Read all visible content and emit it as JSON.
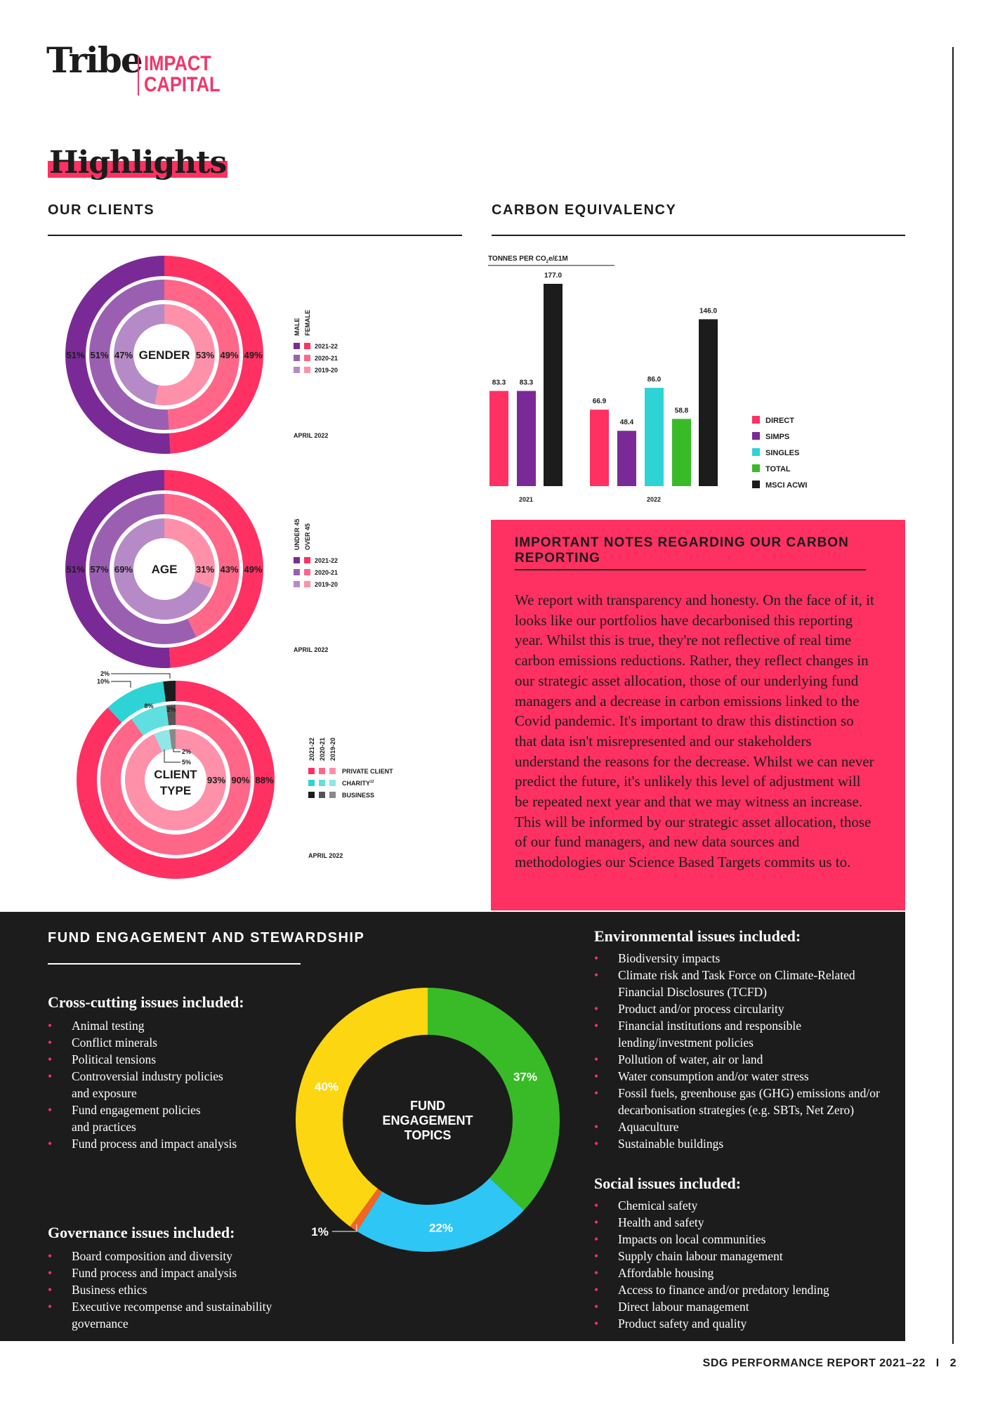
{
  "logo": {
    "tribe": "Tribe",
    "impact": "IMPACT",
    "capital": "CAPITAL"
  },
  "page_title": "Highlights",
  "sections": {
    "clients": "OUR CLIENTS",
    "carbon": "CARBON EQUIVALENCY",
    "fund": "FUND ENGAGEMENT AND STEWARDSHIP"
  },
  "notes": {
    "title": "IMPORTANT NOTES REGARDING OUR CARBON REPORTING",
    "body": "We report with transparency and honesty. On the face of it, it looks like our portfolios have decarbonised this reporting year. Whilst this is true, they're not reflective of real time carbon emissions reductions. Rather, they reflect changes in our strategic asset allocation, those of our underlying fund managers and a decrease in carbon emissions linked to the Covid pandemic. It's important to draw this distinction so that data isn't misrepresented and our stakeholders understand the reasons for the decrease. Whilst we can never predict the future, it's unlikely this level of adjustment will be repeated next year and that we may witness an increase. This will be informed by our strategic asset allocation, those of our fund managers, and new data sources and methodologies our Science Based Targets commits us to."
  },
  "lists": {
    "cross_heading": "Cross-cutting issues included:",
    "cross": [
      "Animal testing",
      "Conflict minerals",
      "Political tensions",
      "Controversial industry policies\nand exposure",
      "Fund engagement policies\nand practices",
      "Fund process and impact analysis"
    ],
    "gov_heading": "Governance issues included:",
    "gov": [
      "Board composition and diversity",
      "Fund process and impact analysis",
      "Business ethics",
      "Executive recompense and sustainability\ngovernance"
    ],
    "env_heading": "Environmental issues included:",
    "env": [
      "Biodiversity impacts",
      "Climate risk and Task Force on Climate-Related\nFinancial Disclosures (TCFD)",
      "Product and/or process circularity",
      "Financial institutions and responsible\nlending/investment policies",
      "Pollution of water, air or land",
      "Water consumption and/or water stress",
      "Fossil fuels, greenhouse gas (GHG) emissions and/or\ndecarbonisation strategies (e.g. SBTs, Net Zero)",
      "Aquaculture",
      "Sustainable buildings"
    ],
    "soc_heading": "Social issues included:",
    "soc": [
      "Chemical safety",
      "Health and safety",
      "Impacts on local communities",
      "Supply chain labour management",
      "Affordable housing",
      "Access to finance and/or predatory lending",
      "Direct labour management",
      "Product safety and quality"
    ]
  },
  "footer": {
    "report": "SDG PERFORMANCE REPORT 2021–22",
    "sep": "I",
    "page": "2"
  },
  "chart_data": [
    {
      "type": "pie",
      "variant": "nested-donut",
      "center_label": "GENDER",
      "date": "APRIL 2022",
      "legend_columns": [
        "MALE",
        "FEMALE"
      ],
      "rings": [
        {
          "name": "2021-22",
          "values": {
            "FEMALE": 49,
            "MALE": 51
          },
          "colors": [
            "#ff3162",
            "#7a2a96"
          ]
        },
        {
          "name": "2020-21",
          "values": {
            "FEMALE": 49,
            "MALE": 51
          },
          "colors": [
            "#ff6688",
            "#9b5fb2"
          ]
        },
        {
          "name": "2019-20",
          "values": {
            "FEMALE": 53,
            "MALE": 47
          },
          "colors": [
            "#ff90aa",
            "#b68ac6"
          ]
        }
      ]
    },
    {
      "type": "pie",
      "variant": "nested-donut",
      "center_label": "AGE",
      "date": "APRIL 2022",
      "legend_columns": [
        "UNDER 45",
        "OVER 45"
      ],
      "rings": [
        {
          "name": "2021-22",
          "values": {
            "OVER 45": 49,
            "UNDER 45": 51
          },
          "colors": [
            "#ff3162",
            "#7a2a96"
          ]
        },
        {
          "name": "2020-21",
          "values": {
            "OVER 45": 43,
            "UNDER 45": 57
          },
          "colors": [
            "#ff6688",
            "#9b5fb2"
          ]
        },
        {
          "name": "2019-20",
          "values": {
            "OVER 45": 31,
            "UNDER 45": 69
          },
          "colors": [
            "#ff90aa",
            "#b68ac6"
          ]
        }
      ]
    },
    {
      "type": "pie",
      "variant": "nested-donut",
      "center_label": "CLIENT TYPE",
      "date": "APRIL 2022",
      "legend_columns": [
        "2021-22",
        "2020-21",
        "2019-20"
      ],
      "legend_rows": [
        "PRIVATE CLIENT",
        "CHARITY",
        "BUSINESS"
      ],
      "charity_superscript": "12",
      "rings": [
        {
          "name": "2021-22",
          "values": {
            "PRIVATE CLIENT": 88,
            "CHARITY": 10,
            "BUSINESS": 2
          },
          "colors": [
            "#ff3162",
            "#2ed3d6",
            "#1c1c1c"
          ]
        },
        {
          "name": "2020-21",
          "values": {
            "PRIVATE CLIENT": 90,
            "CHARITY": 8,
            "BUSINESS": 2
          },
          "colors": [
            "#ff6688",
            "#5fdfe0",
            "#555555"
          ]
        },
        {
          "name": "2019-20",
          "values": {
            "PRIVATE CLIENT": 93,
            "CHARITY": 5,
            "BUSINESS": 2
          },
          "colors": [
            "#ff90aa",
            "#90e7e8",
            "#888888"
          ]
        }
      ]
    },
    {
      "type": "bar",
      "ylabel": "TONNES PER CO2e/£1M",
      "categories": [
        "2021",
        "2022"
      ],
      "series": [
        {
          "name": "DIRECT",
          "color": "#ff3162",
          "values": [
            83.3,
            66.9
          ]
        },
        {
          "name": "SIMPS",
          "color": "#7a2a96",
          "values": [
            83.3,
            48.4
          ]
        },
        {
          "name": "SINGLES",
          "color": "#2ed3d6",
          "values": [
            null,
            86.0
          ]
        },
        {
          "name": "TOTAL",
          "color": "#38bb27",
          "values": [
            null,
            58.8
          ]
        },
        {
          "name": "MSCI ACWI",
          "color": "#1c1c1c",
          "values": [
            177.0,
            146.0
          ]
        }
      ],
      "legend": "right",
      "grid": false
    },
    {
      "type": "pie",
      "variant": "donut",
      "center_label": "FUND ENGAGEMENT TOPICS",
      "slices": [
        {
          "value": 37,
          "label": "37%",
          "color": "#38bb27"
        },
        {
          "value": 22,
          "label": "22%",
          "color": "#2ec6f5"
        },
        {
          "value": 1,
          "label": "1%",
          "color": "#f26522"
        },
        {
          "value": 40,
          "label": "40%",
          "color": "#fcd610"
        }
      ]
    }
  ]
}
